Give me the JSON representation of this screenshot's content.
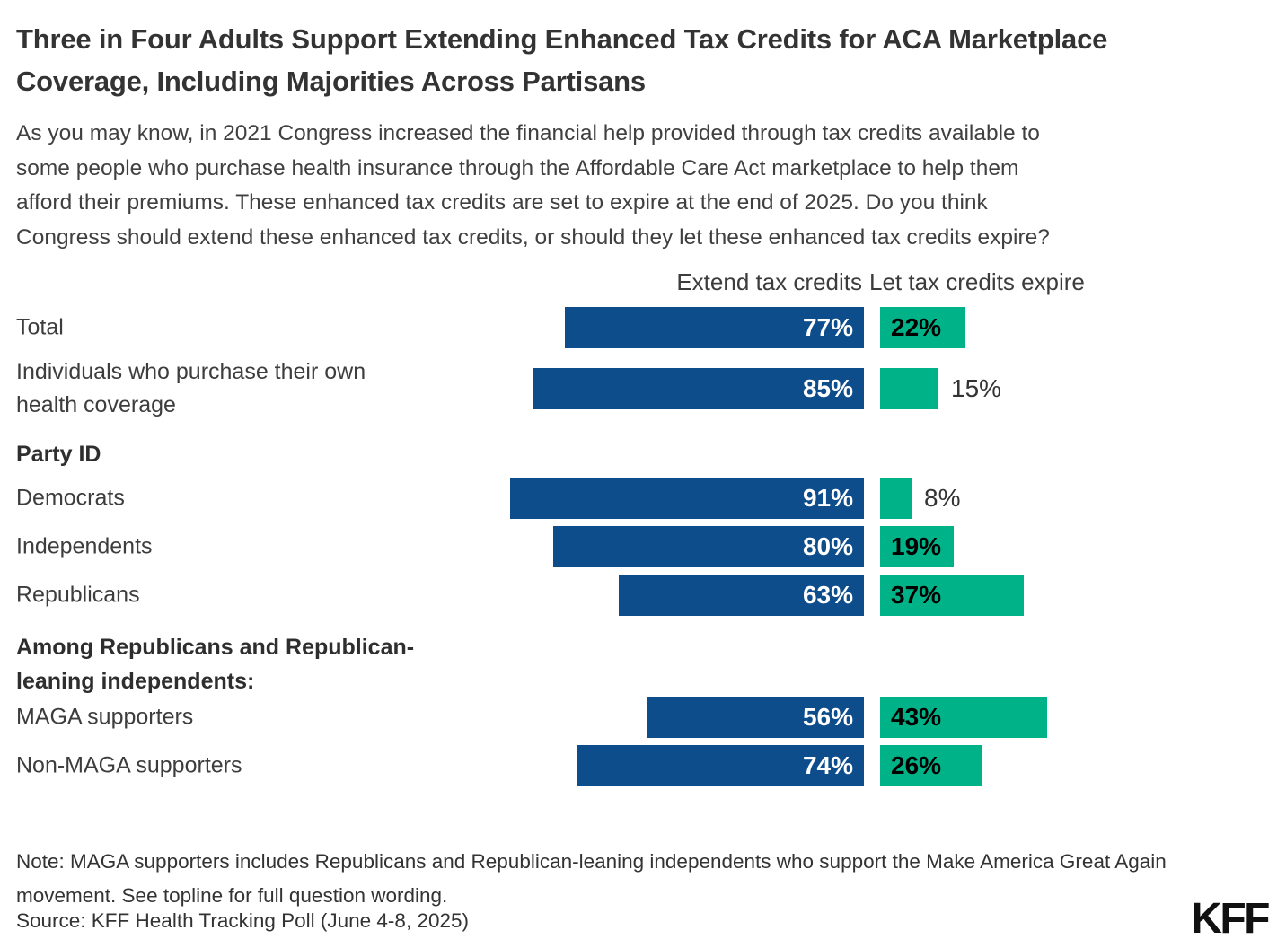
{
  "header": {
    "title": "Three in Four Adults Support Extending Enhanced Tax Credits for ACA Marketplace\nCoverage, Including Majorities Across Partisans",
    "subtitle": "As you may know, in 2021 Congress increased the financial help provided through tax credits available to\nsome people who purchase health insurance through the Affordable Care Act marketplace to help them\nafford their premiums. These enhanced tax credits are set to expire at the end of 2025. Do you think\nCongress should extend these enhanced tax credits, or should they let these enhanced tax credits expire?"
  },
  "columns": {
    "extend_label": "Extend tax credits",
    "expire_label": "Let tax credits expire"
  },
  "colors": {
    "extend": "#0E4D8C",
    "expire": "#00B287",
    "extend_value_text": "#FFFFFF",
    "expire_value_text_inside": "#000000",
    "expire_value_text_outside": "#333333"
  },
  "chart_data": {
    "type": "bar",
    "orientation": "horizontal-diverging",
    "title": "Three in Four Adults Support Extending Enhanced Tax Credits for ACA Marketplace Coverage, Including Majorities Across Partisans",
    "categories": [
      "Total",
      "Individuals who purchase their own health coverage",
      "Democrats",
      "Independents",
      "Republicans",
      "MAGA supporters",
      "Non-MAGA supporters"
    ],
    "series": [
      {
        "name": "Extend tax credits",
        "values": [
          77,
          85,
          91,
          80,
          63,
          56,
          74
        ],
        "color": "#0E4D8C"
      },
      {
        "name": "Let tax credits expire",
        "values": [
          22,
          15,
          8,
          19,
          37,
          43,
          26
        ],
        "color": "#00B287"
      }
    ],
    "group_headers": [
      {
        "label": "Party ID",
        "position": "before Democrats"
      },
      {
        "label": "Among Republicans and Republican-leaning independents:",
        "position": "before MAGA supporters"
      }
    ],
    "value_suffix": "%",
    "legend_position": "top-as-column-headers",
    "grid": false,
    "xlim": [
      0,
      100
    ],
    "rows": [
      {
        "kind": "bar",
        "label": "Total",
        "extend": 77,
        "expire": 22
      },
      {
        "kind": "bar",
        "label": "Individuals who purchase their own\nhealth coverage",
        "extend": 85,
        "expire": 15
      },
      {
        "kind": "group",
        "label": "Party ID"
      },
      {
        "kind": "bar",
        "label": "Democrats",
        "extend": 91,
        "expire": 8
      },
      {
        "kind": "bar",
        "label": "Independents",
        "extend": 80,
        "expire": 19
      },
      {
        "kind": "bar",
        "label": "Republicans",
        "extend": 63,
        "expire": 37
      },
      {
        "kind": "group",
        "label": "Among Republicans and Republican-\nleaning independents:"
      },
      {
        "kind": "bar",
        "label": "MAGA supporters",
        "extend": 56,
        "expire": 43
      },
      {
        "kind": "bar",
        "label": "Non-MAGA supporters",
        "extend": 74,
        "expire": 26
      }
    ]
  },
  "footer": {
    "note": "Note: MAGA supporters includes Republicans and Republican-leaning independents who support the Make America Great Again\nmovement. See topline for full question wording.",
    "source": "Source: KFF Health Tracking Poll (June 4-8, 2025)",
    "logo": "KFF"
  }
}
